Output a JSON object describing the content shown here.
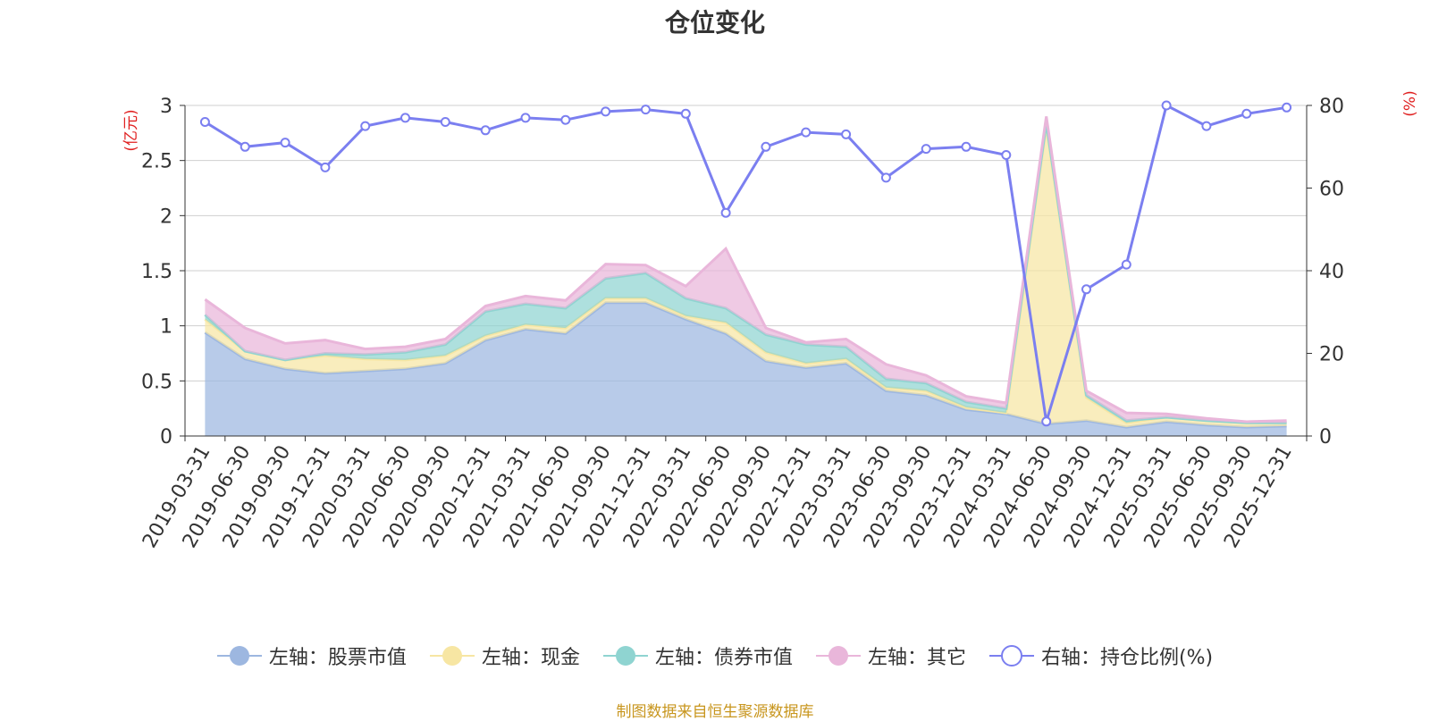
{
  "chart_data": {
    "type": "area",
    "title": "仓位变化",
    "ylabel_left": "(亿元)",
    "ylabel_right": "(%)",
    "ylim_left": [
      0,
      3
    ],
    "ylim_right": [
      0,
      80
    ],
    "yticks_left": [
      "0",
      "0.5",
      "1",
      "1.5",
      "2",
      "2.5",
      "3"
    ],
    "yticks_right": [
      "0",
      "20",
      "40",
      "60",
      "80"
    ],
    "grid": true,
    "legend_position": "bottom",
    "categories": [
      "2019-03-31",
      "2019-06-30",
      "2019-09-30",
      "2019-12-31",
      "2020-03-31",
      "2020-06-30",
      "2020-09-30",
      "2020-12-31",
      "2021-03-31",
      "2021-06-30",
      "2021-09-30",
      "2021-12-31",
      "2022-03-31",
      "2022-06-30",
      "2022-09-30",
      "2022-12-31",
      "2023-03-31",
      "2023-06-30",
      "2023-09-30",
      "2023-12-31",
      "2024-03-31",
      "2024-06-30",
      "2024-09-30",
      "2024-12-31",
      "2025-03-31",
      "2025-06-30",
      "2025-09-30",
      "2025-12-31"
    ],
    "stack_series": [
      {
        "name": "左轴：股票市值",
        "color": "#9db7e0",
        "values": [
          0.94,
          0.7,
          0.61,
          0.57,
          0.59,
          0.61,
          0.66,
          0.87,
          0.97,
          0.93,
          1.21,
          1.21,
          1.06,
          0.93,
          0.68,
          0.62,
          0.66,
          0.41,
          0.37,
          0.24,
          0.2,
          0.11,
          0.14,
          0.08,
          0.13,
          0.1,
          0.08,
          0.09
        ]
      },
      {
        "name": "左轴：现金",
        "color": "#f7e6a3",
        "values": [
          0.12,
          0.07,
          0.08,
          0.16,
          0.11,
          0.08,
          0.07,
          0.04,
          0.04,
          0.05,
          0.04,
          0.04,
          0.03,
          0.1,
          0.08,
          0.04,
          0.04,
          0.03,
          0.04,
          0.02,
          0.01,
          2.7,
          0.21,
          0.04,
          0.04,
          0.04,
          0.04,
          0.03
        ]
      },
      {
        "name": "左轴：债券市值",
        "color": "#8fd4d1",
        "values": [
          0.04,
          0.0,
          0.0,
          0.02,
          0.04,
          0.07,
          0.1,
          0.22,
          0.19,
          0.18,
          0.18,
          0.23,
          0.16,
          0.13,
          0.16,
          0.17,
          0.11,
          0.08,
          0.07,
          0.05,
          0.04,
          0.03,
          0.02,
          0.02,
          0.0,
          0.0,
          0.0,
          0.0
        ]
      },
      {
        "name": "左轴：其它",
        "color": "#e9b6da",
        "values": [
          0.14,
          0.21,
          0.15,
          0.12,
          0.05,
          0.05,
          0.05,
          0.05,
          0.07,
          0.07,
          0.13,
          0.07,
          0.11,
          0.54,
          0.06,
          0.02,
          0.07,
          0.13,
          0.07,
          0.05,
          0.05,
          0.06,
          0.04,
          0.07,
          0.03,
          0.02,
          0.01,
          0.02
        ]
      }
    ],
    "line_series": {
      "name": "右轴：持仓比例(%)",
      "color": "#7b7ff0",
      "values": [
        76,
        70,
        71,
        65,
        75,
        77,
        76,
        74,
        77,
        76.5,
        78.5,
        79,
        78,
        54,
        70,
        73.5,
        73,
        62.5,
        69.5,
        70,
        68,
        3.5,
        35.5,
        41.5,
        80,
        75,
        78,
        79.5
      ]
    }
  },
  "source": "制图数据来自恒生聚源数据库"
}
